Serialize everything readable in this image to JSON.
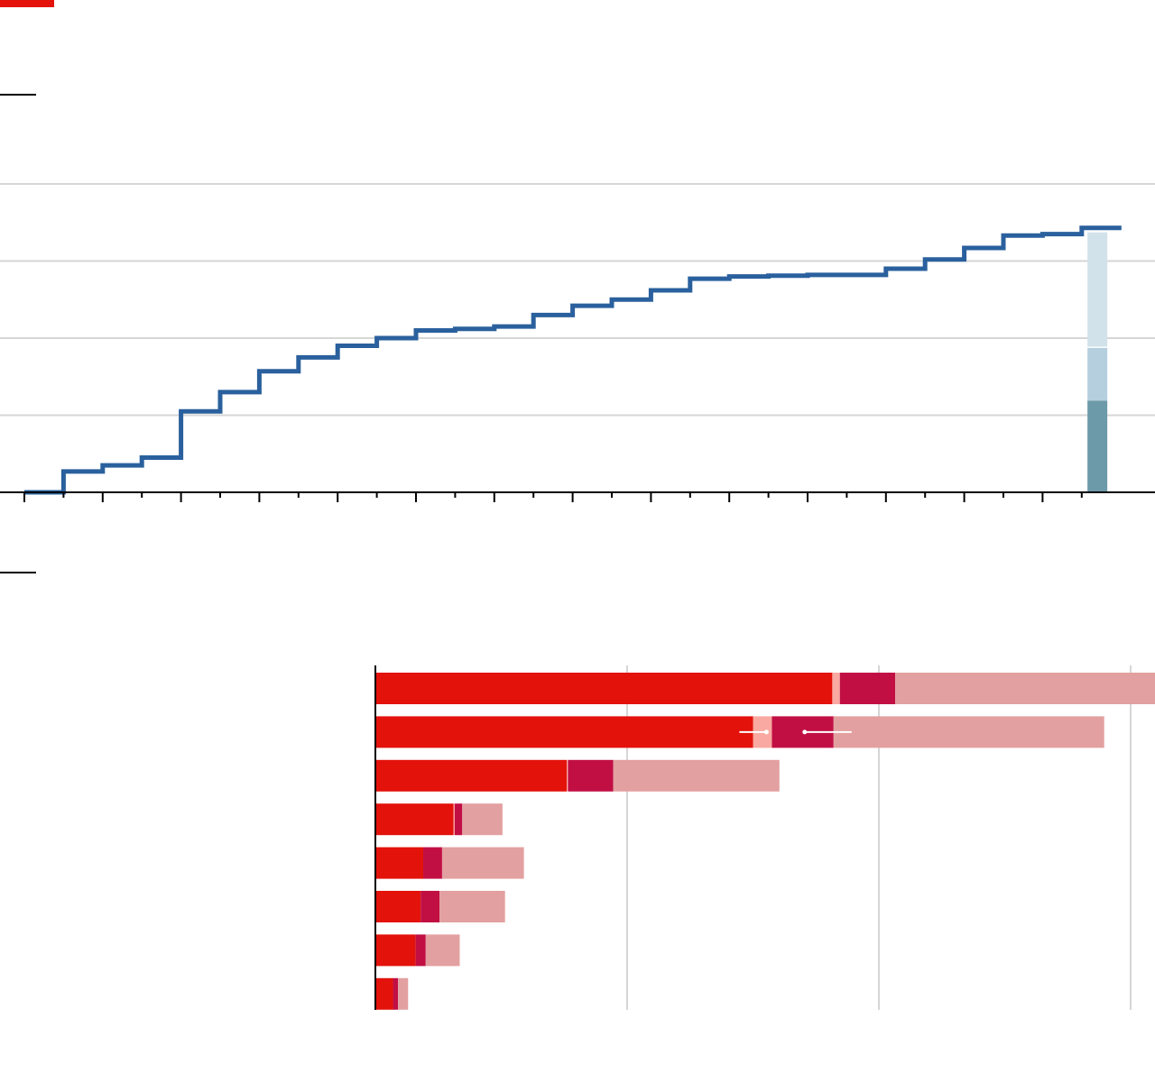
{
  "colors": {
    "accent": "#e3120b",
    "step_line": "#2a609d",
    "gridline": "#d6d6d6",
    "axis": "#000000",
    "stack_1": "#6c9aa8",
    "stack_2": "#b5cfdf",
    "stack_3": "#d2e2eb",
    "bar_primary": "#e3120b",
    "bar_secondary": "#c10f44",
    "bar_light": "#f9a9a1",
    "bar_remainder": "#e3a0a0"
  },
  "chart_data": [
    {
      "type": "line",
      "style": "step",
      "x": [
        0,
        1,
        2,
        3,
        4,
        5,
        6,
        7,
        8,
        9,
        10,
        11,
        12,
        13,
        14,
        15,
        16,
        17,
        18,
        19,
        20,
        21,
        22,
        23,
        24,
        25,
        26,
        27
      ],
      "y": [
        0,
        0.27,
        0.35,
        0.45,
        1.05,
        1.3,
        1.57,
        1.75,
        1.9,
        2.0,
        2.1,
        2.12,
        2.15,
        2.3,
        2.42,
        2.5,
        2.62,
        2.77,
        2.8,
        2.81,
        2.82,
        2.82,
        2.9,
        3.02,
        3.17,
        3.33,
        3.35,
        3.43
      ],
      "ylim": [
        0,
        4
      ],
      "xlim": [
        0,
        28.5
      ],
      "grid": true,
      "x_ticks": 28,
      "end_stack": {
        "x": 27.4,
        "segments": [
          {
            "value": 1.19,
            "color": "#6c9aa8"
          },
          {
            "value": 0.7,
            "color": "#b5cfdf"
          },
          {
            "value": 1.5,
            "color": "#d2e2eb"
          }
        ]
      }
    },
    {
      "type": "bar",
      "orientation": "horizontal",
      "stacked": true,
      "xlim": [
        0,
        3.1
      ],
      "grid": true,
      "x_ticks": [
        0,
        1,
        2,
        3
      ],
      "rows": [
        {
          "segments": [
            1.815,
            0.03,
            0.22,
            1.045
          ],
          "markers": false
        },
        {
          "segments": [
            1.5,
            0.075,
            0.245,
            1.075
          ],
          "markers": true
        },
        {
          "segments": [
            0.76,
            0.005,
            0.18,
            0.66
          ],
          "markers": false
        },
        {
          "segments": [
            0.31,
            0.005,
            0.03,
            0.16
          ],
          "markers": false
        },
        {
          "segments": [
            0.19,
            0.0,
            0.075,
            0.325
          ],
          "markers": false
        },
        {
          "segments": [
            0.18,
            0.0,
            0.075,
            0.26
          ],
          "markers": false
        },
        {
          "segments": [
            0.16,
            0.0,
            0.04,
            0.135
          ],
          "markers": false
        },
        {
          "segments": [
            0.07,
            0.0,
            0.02,
            0.04
          ],
          "markers": false
        }
      ],
      "segment_colors": [
        "#e3120b",
        "#f9a9a1",
        "#c10f44",
        "#e3a0a0"
      ]
    }
  ]
}
